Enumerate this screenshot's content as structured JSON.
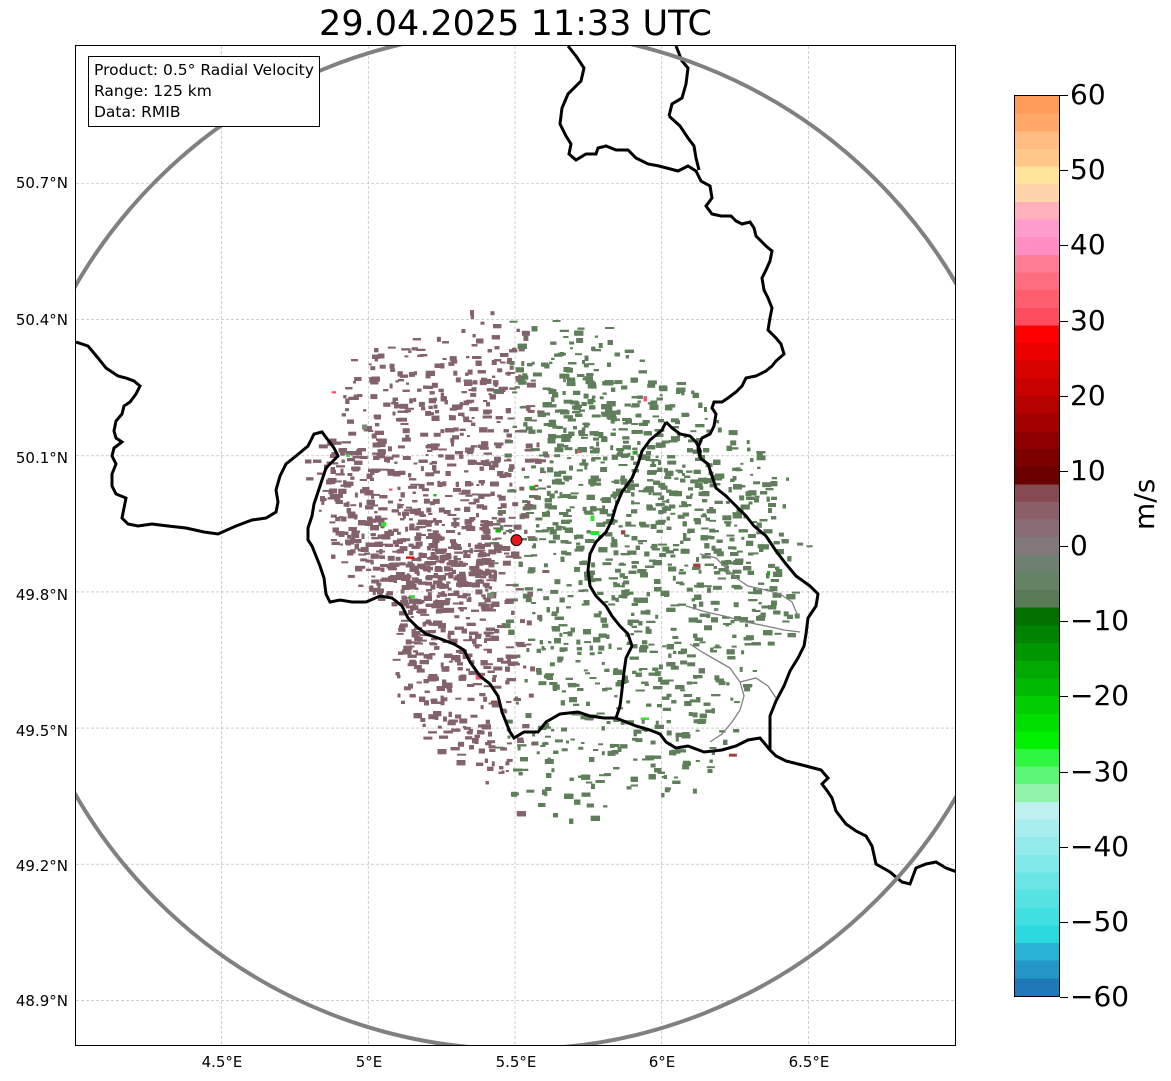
{
  "title": "29.04.2025 11:33 UTC",
  "info_box": {
    "lines": [
      "Product: 0.5° Radial Velocity",
      "Range: 125 km",
      "Data: RMIB"
    ]
  },
  "map": {
    "lat_labels": [
      "50.7°N",
      "50.4°N",
      "50.1°N",
      "49.8°N",
      "49.5°N",
      "49.2°N",
      "48.9°N"
    ],
    "lon_labels": [
      "4.5°E",
      "5°E",
      "5.5°E",
      "6°E",
      "6.5°E"
    ],
    "radar_site": {
      "lat": 49.914,
      "lon": 5.505,
      "marker_color": "#e8151b"
    },
    "range_ring_km": 125,
    "range_ring_color": "#808080",
    "border_color": "#000000",
    "admin_border_color": "#808080",
    "approaching_color": "#5e7f5a",
    "receding_color": "#84626b"
  },
  "colorbar": {
    "unit": "m/s",
    "min": -60,
    "max": 60,
    "tick_labels": [
      "60",
      "50",
      "40",
      "30",
      "20",
      "10",
      "0",
      "−10",
      "−20",
      "−30",
      "−40",
      "−50",
      "−60"
    ],
    "colors": [
      "#1f78b8",
      "#2497c7",
      "#29b3d4",
      "#2bd9df",
      "#40dfe0",
      "#55e2e2",
      "#6ae5e5",
      "#7fe8e8",
      "#94ebeb",
      "#a9eeee",
      "#bef0f0",
      "#90f2a8",
      "#5cf575",
      "#2ef540",
      "#00f000",
      "#00de00",
      "#00cc00",
      "#00ba00",
      "#00a800",
      "#009600",
      "#008400",
      "#007000",
      "#5a7a58",
      "#628364",
      "#6e8070",
      "#80787a",
      "#8a6c76",
      "#8a5f68",
      "#864a52",
      "#6b0000",
      "#7d0000",
      "#8f0000",
      "#a30000",
      "#b50000",
      "#c70000",
      "#d90000",
      "#ec0000",
      "#ff0000",
      "#ff4c5e",
      "#ff5e6e",
      "#ff6e80",
      "#ff7e94",
      "#ff8ec2",
      "#ff9ccd",
      "#ffb0bc",
      "#ffd4a8",
      "#ffe49a",
      "#ffc888",
      "#ffbb80",
      "#ffa868",
      "#ff9a58"
    ]
  }
}
